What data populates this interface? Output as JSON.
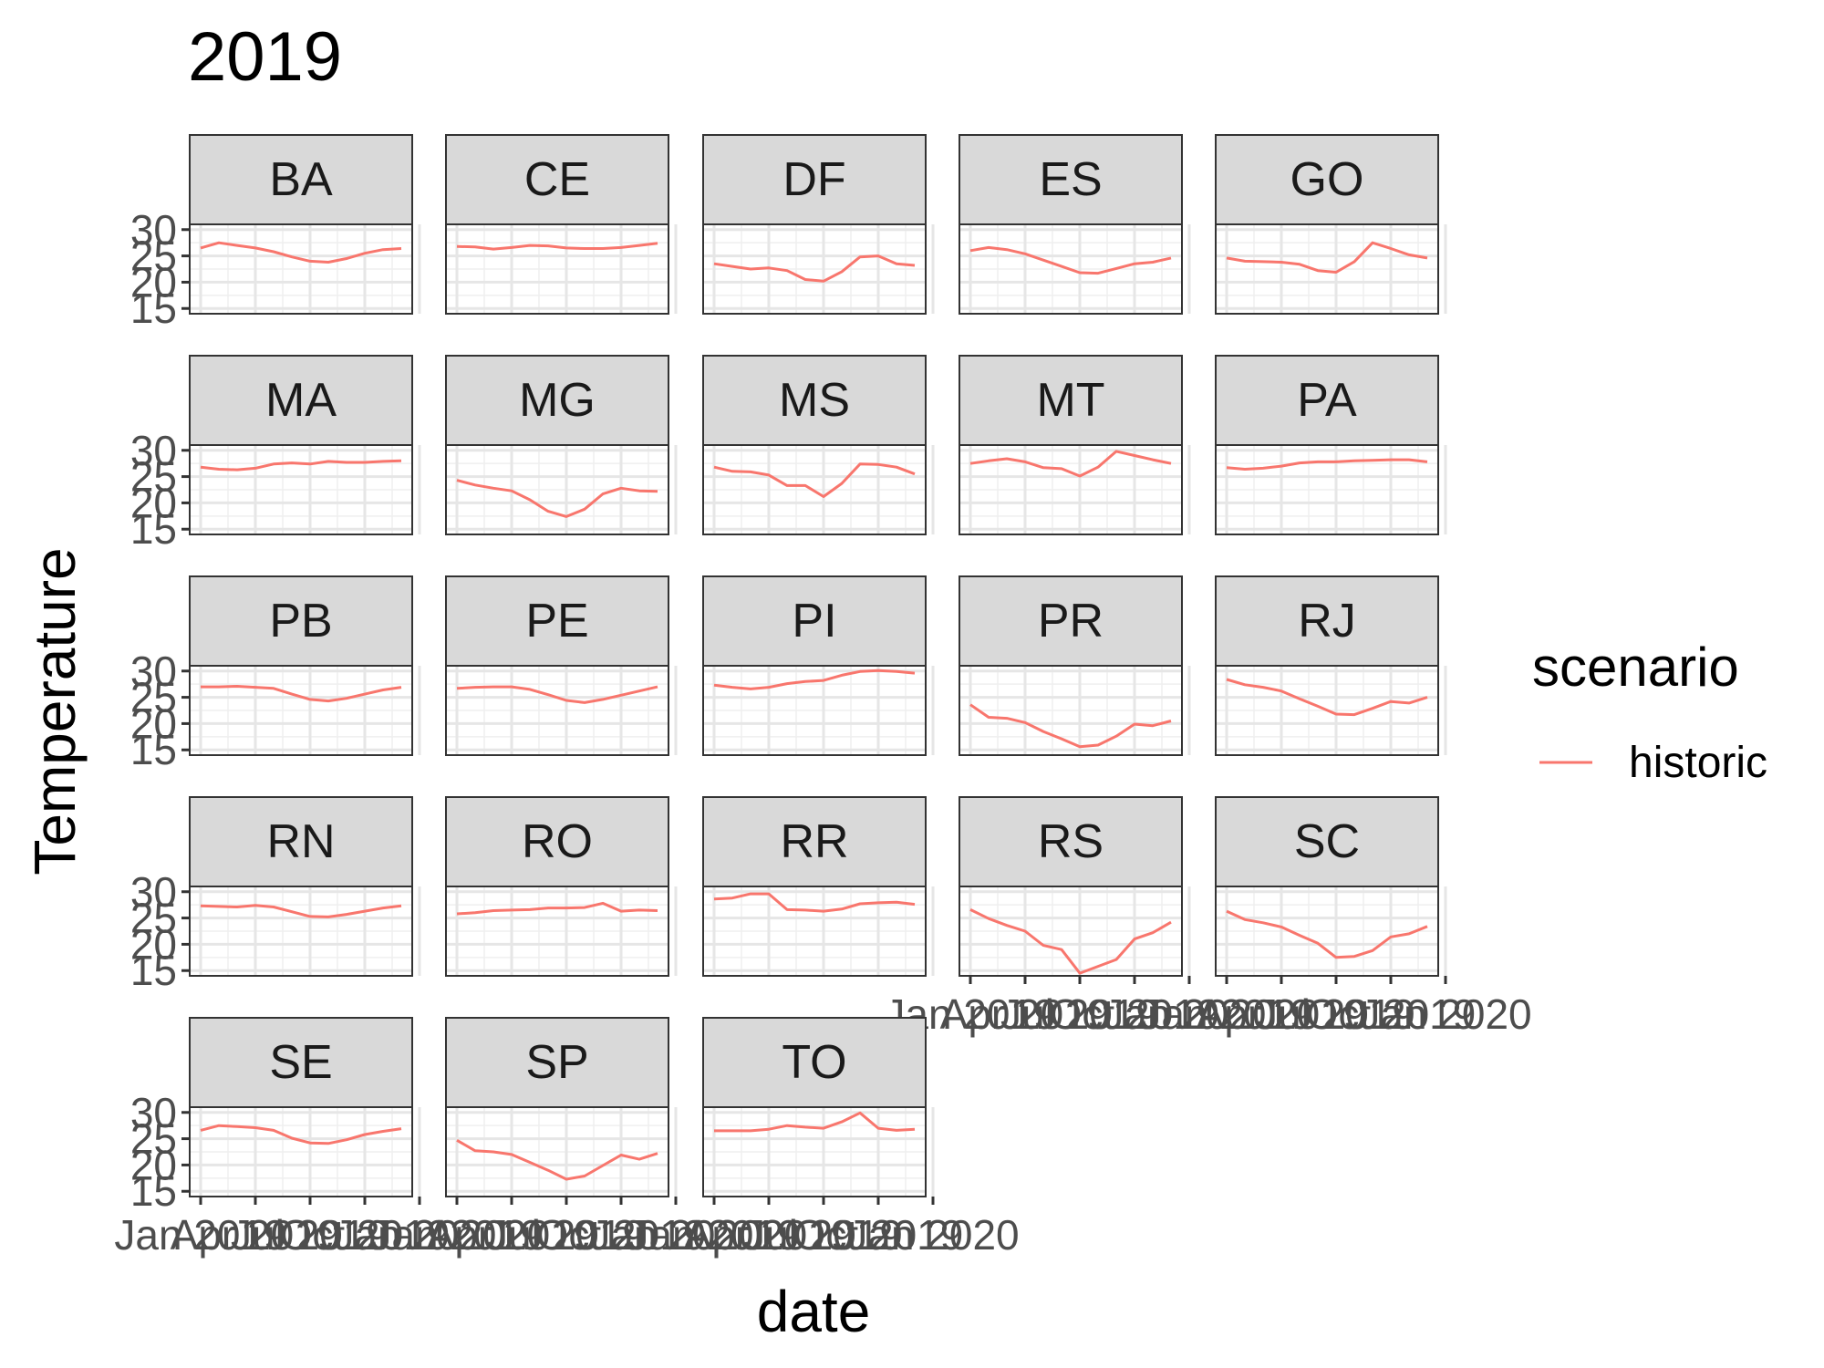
{
  "chart_data": {
    "type": "line",
    "title": "2019",
    "xlabel": "date",
    "ylabel": "Temperature",
    "legend": {
      "title": "scenario",
      "placement": "right",
      "entries": [
        {
          "name": "historic",
          "color": "#F8766D"
        }
      ]
    },
    "ylim": [
      14,
      31
    ],
    "y_ticks": [
      "15",
      "20",
      "25",
      "30"
    ],
    "x_ticks": [
      "Jan 2019",
      "Apr 2019",
      "Jul 2019",
      "Oct 2019",
      "Jan 2020"
    ],
    "x": [
      "2019-01",
      "2019-02",
      "2019-03",
      "2019-04",
      "2019-05",
      "2019-06",
      "2019-07",
      "2019-08",
      "2019-09",
      "2019-10",
      "2019-11",
      "2019-12"
    ],
    "grid": true,
    "facets": [
      {
        "name": "BA",
        "series": [
          {
            "name": "historic",
            "values": [
              26.5,
              27.5,
              27.0,
              26.5,
              25.8,
              24.8,
              24.0,
              23.8,
              24.5,
              25.5,
              26.2,
              26.4
            ]
          }
        ]
      },
      {
        "name": "CE",
        "series": [
          {
            "name": "historic",
            "values": [
              26.8,
              26.7,
              26.3,
              26.6,
              27.0,
              26.9,
              26.5,
              26.4,
              26.4,
              26.6,
              27.0,
              27.4
            ]
          }
        ]
      },
      {
        "name": "DF",
        "series": [
          {
            "name": "historic",
            "values": [
              23.5,
              23.0,
              22.5,
              22.7,
              22.2,
              20.5,
              20.2,
              22.0,
              24.8,
              25.0,
              23.5,
              23.2
            ]
          }
        ]
      },
      {
        "name": "ES",
        "series": [
          {
            "name": "historic",
            "values": [
              26.0,
              26.6,
              26.2,
              25.4,
              24.2,
              23.0,
              21.8,
              21.7,
              22.6,
              23.5,
              23.8,
              24.6
            ]
          }
        ]
      },
      {
        "name": "GO",
        "series": [
          {
            "name": "historic",
            "values": [
              24.6,
              24.0,
              23.9,
              23.8,
              23.4,
              22.2,
              21.9,
              23.9,
              27.5,
              26.4,
              25.2,
              24.6
            ]
          }
        ]
      },
      {
        "name": "MA",
        "series": [
          {
            "name": "historic",
            "values": [
              26.8,
              26.4,
              26.3,
              26.6,
              27.4,
              27.6,
              27.4,
              27.9,
              27.7,
              27.7,
              27.9,
              28.0
            ]
          }
        ]
      },
      {
        "name": "MG",
        "series": [
          {
            "name": "historic",
            "values": [
              24.3,
              23.4,
              22.8,
              22.3,
              20.6,
              18.4,
              17.4,
              18.8,
              21.7,
              22.8,
              22.3,
              22.2
            ]
          }
        ]
      },
      {
        "name": "MS",
        "series": [
          {
            "name": "historic",
            "values": [
              26.8,
              26.0,
              25.9,
              25.3,
              23.3,
              23.3,
              21.2,
              23.7,
              27.4,
              27.3,
              26.8,
              25.5
            ]
          }
        ]
      },
      {
        "name": "MT",
        "series": [
          {
            "name": "historic",
            "values": [
              27.5,
              28.0,
              28.4,
              27.8,
              26.7,
              26.5,
              25.1,
              26.8,
              29.8,
              29.0,
              28.2,
              27.5
            ]
          }
        ]
      },
      {
        "name": "PA",
        "series": [
          {
            "name": "historic",
            "values": [
              26.7,
              26.4,
              26.6,
              27.0,
              27.6,
              27.8,
              27.8,
              28.0,
              28.1,
              28.2,
              28.2,
              27.8
            ]
          }
        ]
      },
      {
        "name": "PB",
        "series": [
          {
            "name": "historic",
            "values": [
              27.0,
              27.0,
              27.1,
              26.9,
              26.7,
              25.6,
              24.6,
              24.3,
              24.8,
              25.6,
              26.4,
              26.9
            ]
          }
        ]
      },
      {
        "name": "PE",
        "series": [
          {
            "name": "historic",
            "values": [
              26.7,
              26.9,
              27.0,
              27.0,
              26.5,
              25.5,
              24.4,
              24.0,
              24.6,
              25.4,
              26.2,
              27.0
            ]
          }
        ]
      },
      {
        "name": "PI",
        "series": [
          {
            "name": "historic",
            "values": [
              27.3,
              26.9,
              26.6,
              26.9,
              27.6,
              28.0,
              28.2,
              29.2,
              29.9,
              30.1,
              29.9,
              29.6
            ]
          }
        ]
      },
      {
        "name": "PR",
        "series": [
          {
            "name": "historic",
            "values": [
              23.6,
              21.2,
              21.0,
              20.2,
              18.5,
              17.1,
              15.6,
              15.9,
              17.6,
              19.9,
              19.6,
              20.5
            ]
          }
        ]
      },
      {
        "name": "RJ",
        "series": [
          {
            "name": "historic",
            "values": [
              28.4,
              27.4,
              26.9,
              26.2,
              24.7,
              23.3,
              21.8,
              21.7,
              22.9,
              24.2,
              23.9,
              25.0
            ]
          }
        ]
      },
      {
        "name": "RN",
        "series": [
          {
            "name": "historic",
            "values": [
              27.3,
              27.2,
              27.1,
              27.4,
              27.1,
              26.2,
              25.3,
              25.2,
              25.7,
              26.3,
              26.9,
              27.3
            ]
          }
        ]
      },
      {
        "name": "RO",
        "series": [
          {
            "name": "historic",
            "values": [
              25.8,
              26.0,
              26.4,
              26.5,
              26.6,
              26.9,
              26.9,
              27.0,
              27.8,
              26.3,
              26.5,
              26.4
            ]
          }
        ]
      },
      {
        "name": "RR",
        "series": [
          {
            "name": "historic",
            "values": [
              28.6,
              28.8,
              29.6,
              29.6,
              26.6,
              26.5,
              26.3,
              26.7,
              27.7,
              27.9,
              28.0,
              27.6
            ]
          }
        ]
      },
      {
        "name": "RS",
        "series": [
          {
            "name": "historic",
            "values": [
              26.6,
              24.9,
              23.6,
              22.5,
              19.8,
              19.0,
              14.5,
              15.8,
              17.1,
              21.0,
              22.2,
              24.2
            ]
          }
        ]
      },
      {
        "name": "SC",
        "series": [
          {
            "name": "historic",
            "values": [
              26.3,
              24.7,
              24.1,
              23.3,
              21.7,
              20.2,
              17.5,
              17.7,
              18.8,
              21.4,
              22.0,
              23.4
            ]
          }
        ]
      },
      {
        "name": "SE",
        "series": [
          {
            "name": "historic",
            "values": [
              26.6,
              27.5,
              27.3,
              27.1,
              26.6,
              25.1,
              24.2,
              24.1,
              24.8,
              25.8,
              26.4,
              26.9
            ]
          }
        ]
      },
      {
        "name": "SP",
        "series": [
          {
            "name": "historic",
            "values": [
              24.7,
              22.7,
              22.5,
              22.0,
              20.5,
              19.0,
              17.3,
              17.9,
              19.9,
              21.9,
              21.1,
              22.2
            ]
          }
        ]
      },
      {
        "name": "TO",
        "series": [
          {
            "name": "historic",
            "values": [
              26.5,
              26.5,
              26.5,
              26.8,
              27.5,
              27.2,
              27.0,
              28.2,
              29.9,
              27.0,
              26.6,
              26.8
            ]
          }
        ]
      }
    ]
  }
}
